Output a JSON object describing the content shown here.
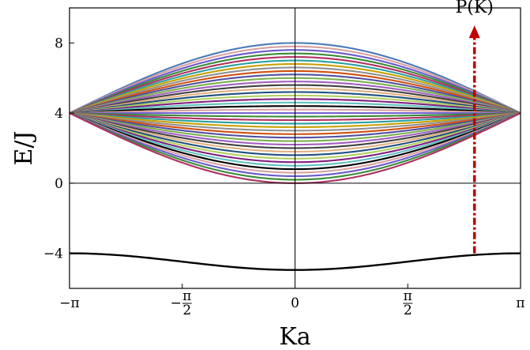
{
  "chart_data": {
    "type": "line",
    "xlabel": "Ka",
    "ylabel": "E/J",
    "xlim": [
      -3.14159,
      3.14159
    ],
    "ylim": [
      -6,
      10
    ],
    "x_ticks": [
      {
        "value": -3.14159,
        "label": "−π"
      },
      {
        "value": -1.5708,
        "label": "−π/2"
      },
      {
        "value": 0,
        "label": "0"
      },
      {
        "value": 1.5708,
        "label": "π/2"
      },
      {
        "value": 3.14159,
        "label": "π"
      }
    ],
    "y_ticks": [
      {
        "value": -4,
        "label": "−4"
      },
      {
        "value": 0,
        "label": "0"
      },
      {
        "value": 4,
        "label": "4"
      },
      {
        "value": 8,
        "label": "8"
      }
    ],
    "grid": false,
    "band": {
      "description_of_curves": "continuum of bands spanning from E = 4(1 - cos(K/2)) to E = 4(1 + cos(K/2)); all meet at E = 4 at K = ±π",
      "lower_edge_at_K0": 0,
      "upper_edge_at_K0": 8,
      "edge_value_at_pi": 4,
      "line_count": 40,
      "colors": [
        "#000000",
        "#d9a0a0",
        "#6a5acd",
        "#3a8a3a",
        "#b03060",
        "#2aa0a0",
        "#c8a000",
        "#909090",
        "#d05010",
        "#5050a0",
        "#7cb050",
        "#a060c0",
        "#404040",
        "#e0b080",
        "#205080",
        "#b0d060",
        "#802080",
        "#60c0c0"
      ],
      "upper_envelope_color": "#4a7ab8"
    },
    "bound_state": {
      "name": "",
      "color": "#000000",
      "points": [
        {
          "x": -3.14159,
          "y": -4.0
        },
        {
          "x": -2.3562,
          "y": -4.1
        },
        {
          "x": -1.5708,
          "y": -4.4
        },
        {
          "x": -0.7854,
          "y": -4.8
        },
        {
          "x": 0,
          "y": -4.95
        },
        {
          "x": 0.7854,
          "y": -4.8
        },
        {
          "x": 1.5708,
          "y": -4.4
        },
        {
          "x": 2.3562,
          "y": -4.1
        },
        {
          "x": 3.14159,
          "y": -4.0
        }
      ]
    },
    "annotation": {
      "text": "P(K)",
      "arrow_x": 2.5,
      "arrow_from_y": -4.0,
      "arrow_to_y": 9.0,
      "color": "#c00000"
    },
    "reference_lines": {
      "vertical_dotted_at": [
        -3.14159,
        3.14159
      ],
      "zero_lines": true
    }
  }
}
